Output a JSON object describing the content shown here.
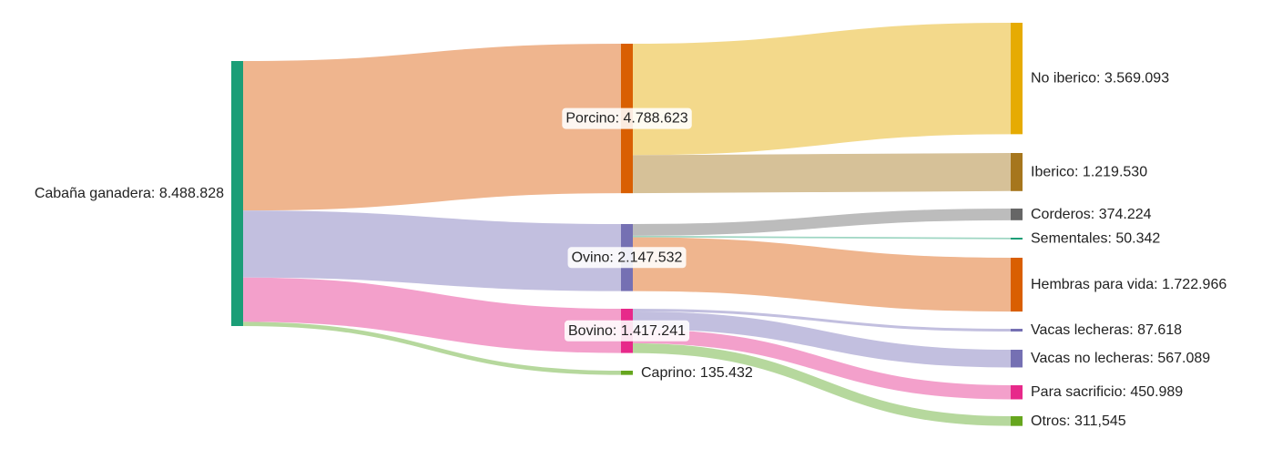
{
  "chart_data": {
    "type": "sankey",
    "nodes": [
      {
        "id": "root",
        "label": "Cabaña ganadera: 8.488.828",
        "value": 8488828,
        "color": "#1b9e77"
      },
      {
        "id": "porcino",
        "label": "Porcino: 4.788.623",
        "value": 4788623,
        "color": "#d95f02"
      },
      {
        "id": "ovino",
        "label": "Ovino: 2.147.532",
        "value": 2147532,
        "color": "#7570b3"
      },
      {
        "id": "bovino",
        "label": "Bovino: 1.417.241",
        "value": 1417241,
        "color": "#e7298a"
      },
      {
        "id": "caprino",
        "label": "Caprino: 135.432",
        "value": 135432,
        "color": "#66a61e"
      },
      {
        "id": "no_iberico",
        "label": "No iberico: 3.569.093",
        "value": 3569093,
        "color": "#e6ab02"
      },
      {
        "id": "iberico",
        "label": "Iberico: 1.219.530",
        "value": 1219530,
        "color": "#a6761d"
      },
      {
        "id": "corderos",
        "label": "Corderos: 374.224",
        "value": 374224,
        "color": "#666666"
      },
      {
        "id": "sementales",
        "label": "Sementales: 50.342",
        "value": 50342,
        "color": "#1b9e77"
      },
      {
        "id": "hembras",
        "label": "Hembras para vida: 1.722.966",
        "value": 1722966,
        "color": "#d95f02"
      },
      {
        "id": "vacas_lecheras",
        "label": "Vacas lecheras: 87.618",
        "value": 87618,
        "color": "#7570b3"
      },
      {
        "id": "vacas_no_lecheras",
        "label": "Vacas no lecheras: 567.089",
        "value": 567089,
        "color": "#7570b3"
      },
      {
        "id": "sacrificio",
        "label": "Para sacrificio: 450.989",
        "value": 450989,
        "color": "#e7298a"
      },
      {
        "id": "otros",
        "label": "Otros: 311,545",
        "value": 311545,
        "color": "#66a61e"
      }
    ],
    "links": [
      {
        "source": "root",
        "target": "porcino",
        "value": 4788623,
        "color": "#efb58e"
      },
      {
        "source": "root",
        "target": "ovino",
        "value": 2147532,
        "color": "#c2bfdf"
      },
      {
        "source": "root",
        "target": "bovino",
        "value": 1417241,
        "color": "#f3a0cb"
      },
      {
        "source": "root",
        "target": "caprino",
        "value": 135432,
        "color": "#b6d89d"
      },
      {
        "source": "porcino",
        "target": "no_iberico",
        "value": 3569093,
        "color": "#f3d98b"
      },
      {
        "source": "porcino",
        "target": "iberico",
        "value": 1219530,
        "color": "#d6c198"
      },
      {
        "source": "ovino",
        "target": "corderos",
        "value": 374224,
        "color": "#bcbcbc"
      },
      {
        "source": "ovino",
        "target": "sementales",
        "value": 50342,
        "color": "#9fd6c3"
      },
      {
        "source": "ovino",
        "target": "hembras",
        "value": 1722966,
        "color": "#efb58e"
      },
      {
        "source": "bovino",
        "target": "vacas_lecheras",
        "value": 87618,
        "color": "#c2bfdf"
      },
      {
        "source": "bovino",
        "target": "vacas_no_lecheras",
        "value": 567089,
        "color": "#c2bfdf"
      },
      {
        "source": "bovino",
        "target": "sacrificio",
        "value": 450989,
        "color": "#f3a0cb"
      },
      {
        "source": "bovino",
        "target": "otros",
        "value": 311545,
        "color": "#b6d89d"
      }
    ]
  }
}
